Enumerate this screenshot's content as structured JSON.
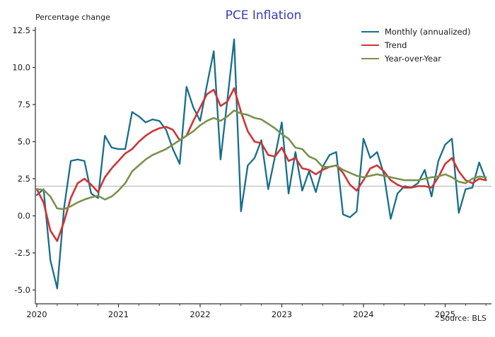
{
  "figure": {
    "title": "PCE Inflation",
    "title_color": "#3b3bbb",
    "y_axis_title": "Percentage change",
    "source_note": "Source: BLS"
  },
  "chart_data": {
    "type": "line",
    "title": "PCE Inflation",
    "ylabel": "Percentage change",
    "x_unit": "month",
    "x_start": "2020-01",
    "x_end": "2025-07",
    "n_points": 67,
    "x_tick_labels": [
      "2020",
      "2021",
      "2022",
      "2023",
      "2024",
      "2025"
    ],
    "y_ticks": [
      -5.0,
      -2.5,
      0.0,
      2.5,
      5.0,
      7.5,
      10.0,
      12.5
    ],
    "ylim": [
      -5.9,
      12.75
    ],
    "reference_line_y": 2.0,
    "reference_line_color": "#b3b3b3",
    "grid": false,
    "legend_position": "upper right",
    "axis_color": "#333333",
    "series": [
      {
        "name": "Monthly (annualized)",
        "color": "#176d8d",
        "line_width": 2.3,
        "values": [
          1.4,
          1.8,
          -3.0,
          -4.9,
          0.5,
          3.7,
          3.8,
          3.7,
          1.5,
          1.2,
          5.4,
          4.6,
          4.5,
          4.5,
          7.0,
          6.7,
          6.3,
          6.5,
          6.4,
          5.8,
          4.5,
          3.5,
          8.7,
          7.3,
          6.4,
          8.8,
          11.1,
          3.8,
          7.8,
          11.9,
          0.3,
          3.4,
          3.9,
          5.1,
          1.8,
          4.0,
          6.3,
          1.5,
          4.3,
          1.7,
          3.0,
          1.6,
          3.3,
          4.1,
          4.3,
          0.1,
          -0.1,
          0.3,
          5.2,
          3.9,
          4.3,
          2.8,
          -0.2,
          1.5,
          2.0,
          1.9,
          2.2,
          3.1,
          1.3,
          3.7,
          4.8,
          5.2,
          0.2,
          1.8,
          1.9,
          3.6,
          2.4
        ]
      },
      {
        "name": "Trend",
        "color": "#cf3434",
        "line_width": 2.6,
        "values": [
          1.8,
          0.9,
          -1.0,
          -1.7,
          -0.4,
          1.2,
          2.2,
          2.5,
          2.1,
          1.6,
          2.6,
          3.2,
          3.7,
          4.2,
          4.5,
          5.0,
          5.4,
          5.7,
          5.9,
          6.0,
          5.8,
          5.1,
          5.4,
          6.4,
          7.3,
          8.2,
          8.5,
          7.4,
          7.7,
          8.6,
          7.0,
          5.7,
          5.0,
          4.9,
          4.1,
          4.0,
          4.6,
          3.7,
          3.9,
          3.2,
          3.1,
          2.8,
          3.1,
          3.3,
          3.4,
          2.9,
          2.1,
          1.7,
          2.4,
          3.2,
          3.4,
          3.0,
          2.4,
          2.1,
          1.9,
          1.9,
          2.0,
          2.0,
          1.9,
          2.6,
          3.5,
          3.9,
          3.0,
          2.4,
          2.2,
          2.5,
          2.4
        ]
      },
      {
        "name": "Year-over-Year",
        "color": "#78924c",
        "line_width": 2.6,
        "values": [
          1.8,
          1.75,
          1.3,
          0.5,
          0.45,
          0.65,
          0.9,
          1.1,
          1.25,
          1.35,
          1.1,
          1.3,
          1.7,
          2.2,
          3.0,
          3.4,
          3.8,
          4.1,
          4.3,
          4.5,
          4.8,
          5.1,
          5.4,
          5.7,
          6.1,
          6.4,
          6.6,
          6.4,
          6.7,
          7.1,
          6.9,
          6.8,
          6.6,
          6.5,
          6.2,
          5.9,
          5.5,
          5.2,
          4.6,
          4.5,
          4.0,
          3.8,
          3.3,
          3.3,
          3.4,
          3.1,
          2.9,
          2.7,
          2.6,
          2.7,
          2.8,
          2.7,
          2.6,
          2.5,
          2.4,
          2.4,
          2.4,
          2.5,
          2.6,
          2.65,
          2.8,
          2.6,
          2.3,
          2.2,
          2.5,
          2.65,
          2.6
        ]
      }
    ]
  }
}
